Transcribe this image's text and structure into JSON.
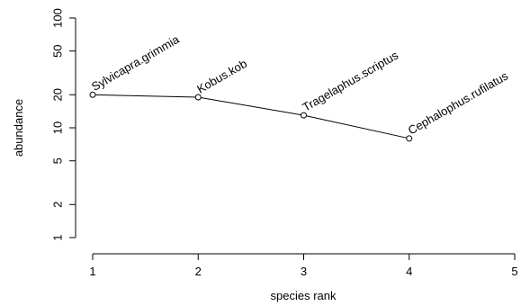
{
  "chart_data": {
    "type": "scatter",
    "xlabel": "species rank",
    "ylabel": "abundance",
    "x_ticks": [
      1,
      2,
      3,
      4,
      5
    ],
    "y_ticks": [
      1,
      2,
      5,
      10,
      20,
      50,
      100
    ],
    "xlim": [
      1,
      5
    ],
    "ylim": [
      1,
      100
    ],
    "y_scale": "log",
    "grid": false,
    "points": [
      {
        "rank": 1,
        "abundance": 20,
        "label": "Sylvicapra.grimmia"
      },
      {
        "rank": 2,
        "abundance": 19,
        "label": "Kobus.kob"
      },
      {
        "rank": 3,
        "abundance": 13,
        "label": "Tragelaphus.scriptus"
      },
      {
        "rank": 4,
        "abundance": 8,
        "label": "Cephalophus.rufilatus"
      }
    ]
  }
}
